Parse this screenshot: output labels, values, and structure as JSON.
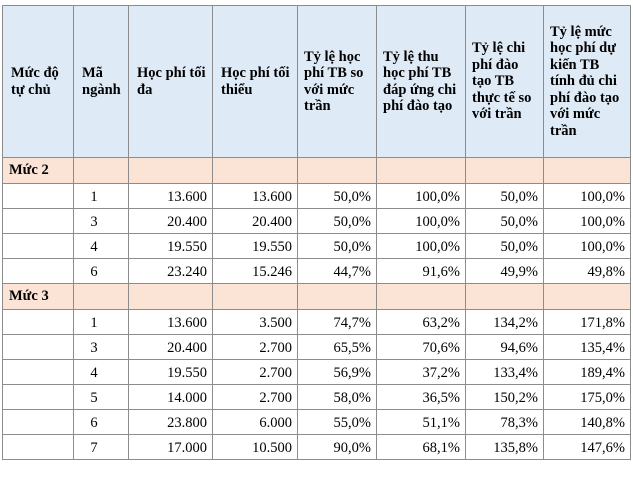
{
  "headers": [
    "Mức độ tự chủ",
    "Mã ngành",
    "Học phí tối đa",
    "Học phí tối thiểu",
    "Tỷ lệ học phí TB so với mức trần",
    "Tỷ lệ thu học phí TB đáp ứng chi phí đào tạo",
    "Tỷ lệ chi phí đào tạo TB thực tế so với trần",
    "Tỷ lệ mức học phí dự kiến TB tính đủ chi phí đào tạo với mức trần"
  ],
  "groups": [
    {
      "label": "Mức 2",
      "rows": [
        [
          "1",
          "13.600",
          "13.600",
          "50,0%",
          "100,0%",
          "50,0%",
          "100,0%"
        ],
        [
          "3",
          "20.400",
          "20.400",
          "50,0%",
          "100,0%",
          "50,0%",
          "100,0%"
        ],
        [
          "4",
          "19.550",
          "19.550",
          "50,0%",
          "100,0%",
          "50,0%",
          "100,0%"
        ],
        [
          "6",
          "23.240",
          "15.246",
          "44,7%",
          "91,6%",
          "49,9%",
          "49,8%"
        ]
      ]
    },
    {
      "label": "Mức 3",
      "rows": [
        [
          "1",
          "13.600",
          "3.500",
          "74,7%",
          "63,2%",
          "134,2%",
          "171,8%"
        ],
        [
          "3",
          "20.400",
          "2.700",
          "65,5%",
          "70,6%",
          "94,6%",
          "135,4%"
        ],
        [
          "4",
          "19.550",
          "2.700",
          "56,9%",
          "37,2%",
          "133,4%",
          "189,4%"
        ],
        [
          "5",
          "14.000",
          "2.700",
          "58,0%",
          "36,5%",
          "150,2%",
          "175,0%"
        ],
        [
          "6",
          "23.800",
          "6.000",
          "55,0%",
          "51,1%",
          "78,3%",
          "140,8%"
        ],
        [
          "7",
          "17.000",
          "10.500",
          "90,0%",
          "68,1%",
          "135,8%",
          "147,6%"
        ]
      ]
    }
  ]
}
